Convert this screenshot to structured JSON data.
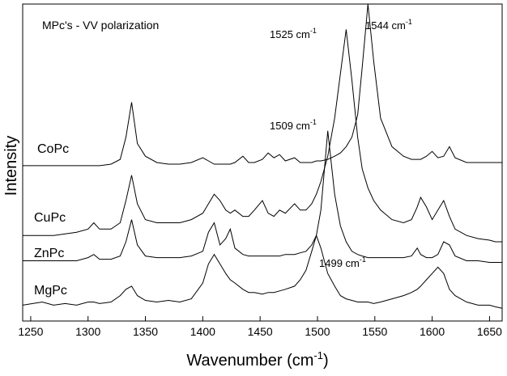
{
  "chart_data": {
    "type": "line",
    "title": "MPc's - VV polarization",
    "xlabel": "Wavenumber (cm",
    "xlabel_sup": "-1",
    "xlabel_end": ")",
    "ylabel": "Intensity",
    "xlim": [
      1243,
      1661
    ],
    "ylim": [
      0,
      100
    ],
    "xticks": [
      1250,
      1300,
      1350,
      1400,
      1450,
      1500,
      1550,
      1600,
      1650
    ],
    "x": [
      1243,
      1260,
      1270,
      1280,
      1290,
      1300,
      1305,
      1310,
      1320,
      1328,
      1333,
      1338,
      1343,
      1350,
      1360,
      1370,
      1380,
      1390,
      1400,
      1405,
      1410,
      1415,
      1420,
      1424,
      1428,
      1435,
      1440,
      1445,
      1452,
      1457,
      1462,
      1467,
      1472,
      1480,
      1485,
      1490,
      1495,
      1499,
      1503,
      1509,
      1515,
      1520,
      1525,
      1530,
      1535,
      1539,
      1544,
      1549,
      1555,
      1565,
      1575,
      1582,
      1587,
      1590,
      1595,
      1600,
      1605,
      1610,
      1615,
      1620,
      1630,
      1640,
      1650,
      1655,
      1661
    ],
    "series": [
      {
        "name": "CoPc",
        "color": "#000000",
        "values": [
          49,
          49,
          49,
          49,
          49,
          49,
          49,
          49,
          49.5,
          51,
          58,
          69,
          56,
          52,
          50,
          49.5,
          49.5,
          50,
          51.5,
          50.5,
          49.5,
          49.5,
          49.5,
          49.5,
          50,
          52,
          50,
          50,
          51,
          53,
          51.5,
          52.5,
          50.5,
          51.5,
          50,
          50,
          50,
          50.5,
          50.5,
          51,
          52,
          53,
          55,
          58,
          65,
          80,
          100,
          82,
          64,
          55,
          52,
          51,
          51,
          51,
          52,
          53.5,
          51.5,
          52,
          55,
          51.5,
          50,
          50,
          50,
          50,
          50
        ]
      },
      {
        "name": "CuPc",
        "color": "#000000",
        "values": [
          27,
          27,
          27,
          27.5,
          28,
          29,
          31,
          29,
          29,
          31,
          38,
          46,
          37,
          32,
          31,
          31,
          31,
          32,
          34,
          37,
          40,
          38,
          35,
          34,
          35,
          33,
          33,
          35,
          38,
          34,
          33,
          35,
          34,
          37,
          35,
          35,
          37,
          40,
          44,
          52,
          64,
          78,
          92,
          76,
          58,
          48,
          42,
          38,
          35,
          32,
          31,
          32,
          36,
          39,
          36,
          32,
          35,
          38,
          33,
          29,
          27,
          26,
          25.5,
          25,
          25
        ]
      },
      {
        "name": "ZnPc",
        "color": "#000000",
        "values": [
          19,
          19,
          19,
          19,
          19,
          20,
          21,
          19.5,
          19.5,
          20.5,
          25,
          32,
          24,
          20.5,
          20,
          20,
          20,
          20.5,
          22,
          28,
          31,
          24,
          26,
          29,
          23,
          21,
          20.5,
          20.5,
          20.5,
          20.5,
          20.5,
          20.5,
          21,
          21,
          21.5,
          22,
          24,
          27,
          35,
          60,
          40,
          30,
          25,
          22,
          21,
          20.5,
          20,
          20,
          20,
          20,
          20,
          20.5,
          23,
          21,
          20,
          20,
          21,
          25,
          24,
          20.5,
          19,
          19,
          18.5,
          18.5,
          18.5
        ]
      },
      {
        "name": "MgPc",
        "color": "#000000",
        "values": [
          5,
          6,
          5,
          5.5,
          5,
          6,
          6,
          5.5,
          6,
          8,
          10,
          11,
          8,
          6.5,
          6,
          6.5,
          6,
          7,
          12,
          18,
          21,
          18,
          15,
          13,
          12,
          10,
          9,
          9,
          8.5,
          9,
          9,
          9.5,
          10,
          11,
          13,
          16,
          22,
          27,
          23,
          15,
          11,
          8,
          7,
          6.5,
          6,
          6,
          6,
          5.5,
          6,
          7,
          8,
          9,
          10,
          11,
          13,
          15,
          17,
          15,
          10,
          8,
          6,
          5,
          5,
          4.5,
          4
        ]
      }
    ],
    "annotations": [
      {
        "text": "1525 cm",
        "sup": "-1"
      },
      {
        "text": "1544 cm",
        "sup": "-1"
      },
      {
        "text": "1509 cm",
        "sup": "-1"
      },
      {
        "text": "1499 cm",
        "sup": "-1"
      }
    ]
  }
}
